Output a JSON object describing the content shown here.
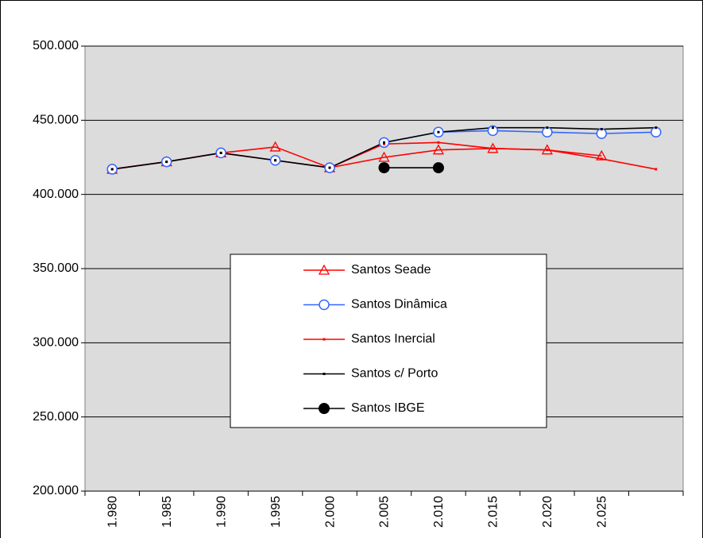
{
  "chart_data": {
    "type": "line",
    "categories": [
      "1.980",
      "1.985",
      "1.990",
      "1.995",
      "2.000",
      "2.005",
      "2.010",
      "2.015",
      "2.020",
      "2.025",
      null
    ],
    "series": [
      {
        "name": "Santos Seade",
        "color": "#ff0000",
        "marker": "triangle",
        "values": [
          417000,
          422000,
          428000,
          432000,
          418000,
          425000,
          430000,
          431000,
          430000,
          426000,
          null
        ]
      },
      {
        "name": "Santos Dinâmica",
        "color": "#3366ff",
        "marker": "circle",
        "values": [
          417000,
          422000,
          428000,
          423000,
          418000,
          435000,
          442000,
          443000,
          442000,
          441000,
          442000
        ]
      },
      {
        "name": "Santos Inercial",
        "color": "#ff0000",
        "marker": "dot",
        "values": [
          417000,
          422000,
          428000,
          423000,
          418000,
          434000,
          435000,
          431000,
          430000,
          424000,
          417000
        ]
      },
      {
        "name": "Santos c/ Porto",
        "color": "#000000",
        "marker": "dot",
        "values": [
          417000,
          422000,
          428000,
          423000,
          418000,
          435000,
          442000,
          445000,
          445000,
          444000,
          445000
        ]
      },
      {
        "name": "Santos IBGE",
        "color": "#000000",
        "marker": "bigdot",
        "values": [
          null,
          null,
          null,
          null,
          null,
          418000,
          418000,
          null,
          null,
          null,
          null
        ]
      }
    ],
    "ylim": [
      200000,
      500000
    ],
    "yticks": [
      {
        "value": 200000,
        "label": "200.000"
      },
      {
        "value": 250000,
        "label": "250.000"
      },
      {
        "value": 300000,
        "label": "300.000"
      },
      {
        "value": 350000,
        "label": "350.000"
      },
      {
        "value": 400000,
        "label": "400.000"
      },
      {
        "value": 450000,
        "label": "450.000"
      },
      {
        "value": 500000,
        "label": "500.000"
      }
    ],
    "grid": true,
    "legend": "center"
  }
}
